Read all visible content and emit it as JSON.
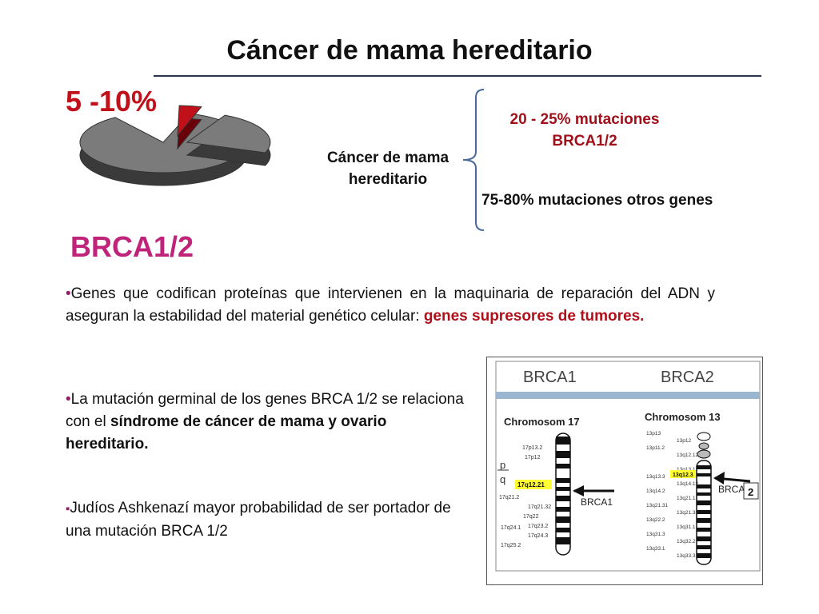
{
  "title": "Cáncer de mama hereditario",
  "pie_percent_label": "5 -10%",
  "pie_chart": {
    "type": "pie",
    "highlight_label": "5 -10%",
    "colors": {
      "main": "#7b7b7b",
      "highlight": "#c0101a"
    }
  },
  "brca_heading": "BRCA1/2",
  "diagram": {
    "center_label": "Cáncer de mama hereditario",
    "branch_1": "20 - 25% mutaciones BRCA1/2",
    "branch_2": "75-80% mutaciones otros genes"
  },
  "paragraphs": {
    "p1_bullet": "•",
    "p1_text": "Genes que codifican proteínas que intervienen en la maquinaria de reparación del ADN y aseguran la estabilidad del material genético celular: ",
    "p1_red": "genes supresores de tumores.",
    "p2_bullet": "•",
    "p2_text": "La mutación germinal de los genes BRCA 1/2 se relaciona con el ",
    "p2_bold": "síndrome de cáncer de mama y ovario hereditario.",
    "p3_bullet": "▪",
    "p3_text": "Judíos Ashkenazí  mayor probabilidad de ser portador de una mutación BRCA 1/2"
  },
  "chromosome_figure": {
    "col1_title": "BRCA1",
    "col2_title": "BRCA2",
    "chrom1_name": "Chromosom 17",
    "chrom2_name": "Chromosom 13",
    "chrom1_bands_upper": [
      "17p13.2",
      "17p12"
    ],
    "chrom1_arm_p": "p",
    "chrom1_arm_q": "q",
    "chrom1_highlight": "17q12.21",
    "chrom1_bands_lower": [
      "17q21.2",
      "17q21.32",
      "17q22",
      "17q23.2",
      "17q24.1",
      "17q24.3",
      "17q25.2"
    ],
    "chrom1_arrow_label": "BRCA1",
    "chrom2_bands": [
      "13p13",
      "13p12",
      "13p11.2",
      "13q12.12",
      "13q12.3",
      "13q13.1",
      "13q13.3",
      "13q14.12",
      "13q14.2",
      "13q21.1",
      "13q21.31",
      "13q21.33",
      "13q22.2",
      "13q31.1",
      "13q31.3",
      "13q32.2",
      "13q33.1",
      "13q33.3"
    ],
    "chrom2_highlight": "13q12.3",
    "chrom2_arrow_label": "BRCA",
    "chrom2_arrow_suffix": "2"
  }
}
